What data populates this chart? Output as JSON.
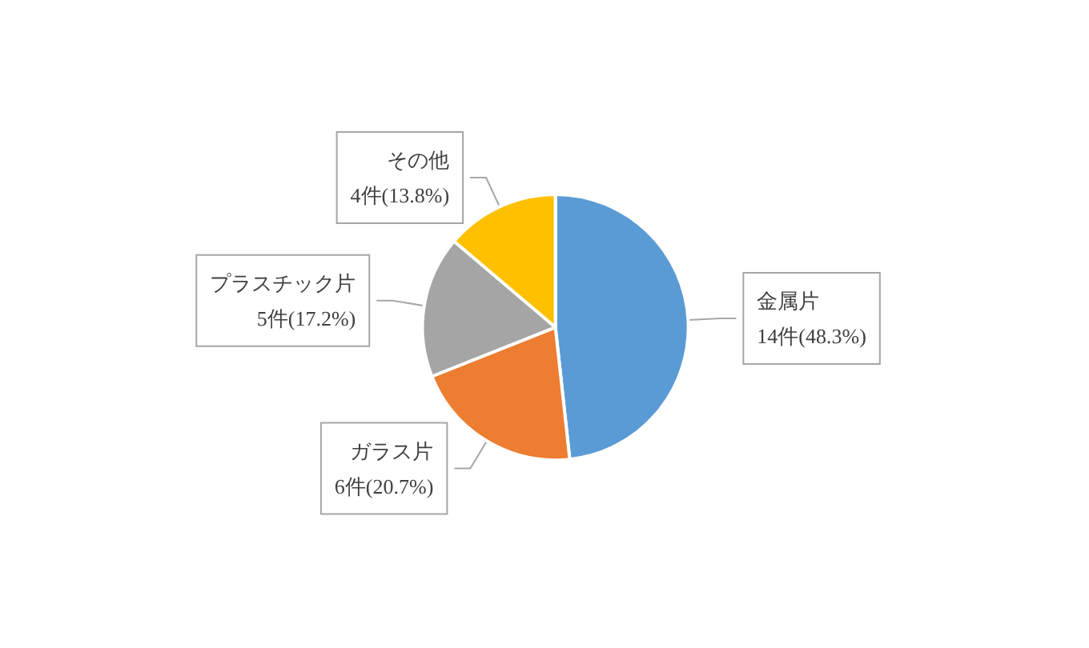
{
  "chart_data": {
    "type": "pie",
    "categories": [
      "金属片",
      "ガラス片",
      "プラスチック片",
      "その他"
    ],
    "values": [
      14,
      6,
      5,
      4
    ],
    "value_labels": [
      "14件(48.3%)",
      "6件(20.7%)",
      "5件(17.2%)",
      "4件(13.8%)"
    ],
    "colors": [
      "#5b9bd5",
      "#ed7d31",
      "#a5a5a5",
      "#ffc000"
    ],
    "legend": false
  }
}
